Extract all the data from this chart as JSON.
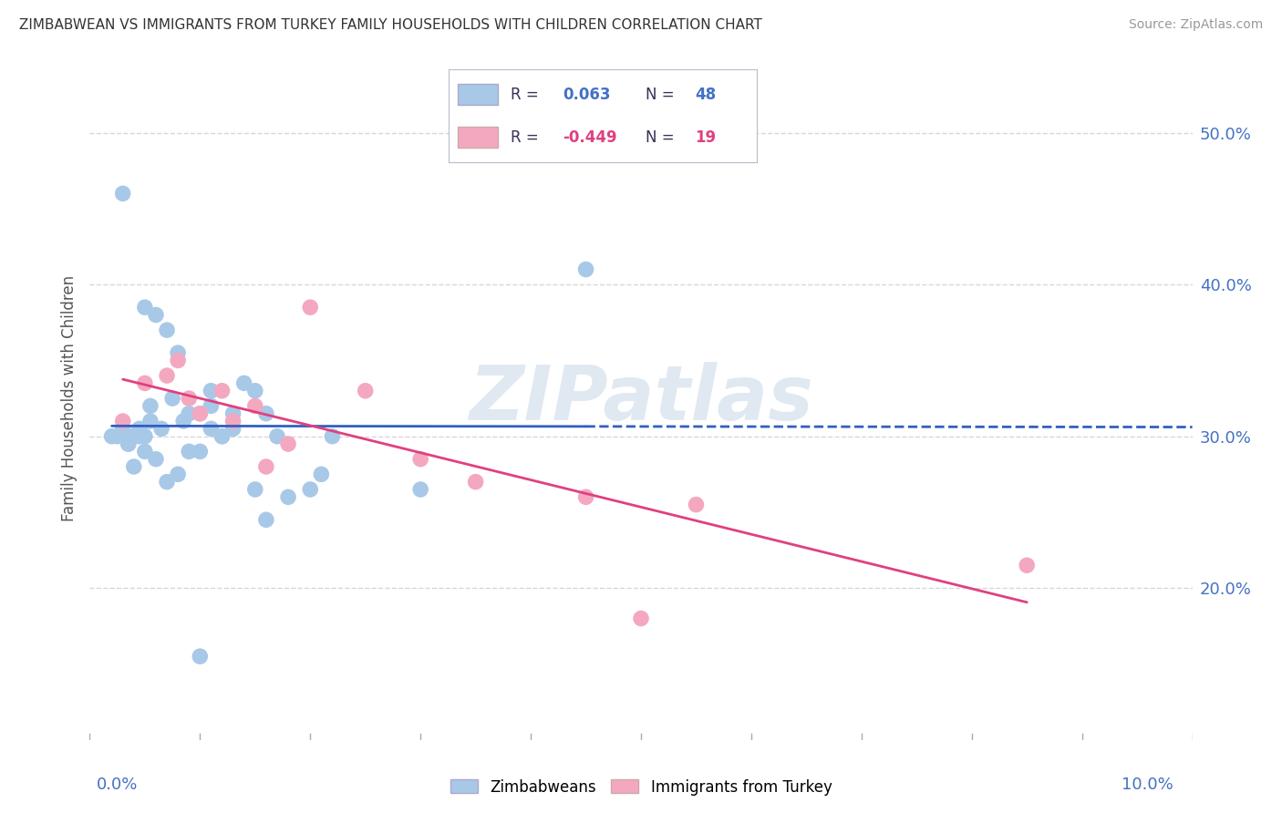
{
  "title": "ZIMBABWEAN VS IMMIGRANTS FROM TURKEY FAMILY HOUSEHOLDS WITH CHILDREN CORRELATION CHART",
  "source": "Source: ZipAtlas.com",
  "ylabel": "Family Households with Children",
  "xmin": 0.0,
  "xmax": 10.0,
  "ymin": 10.0,
  "ymax": 55.0,
  "yticks": [
    20.0,
    30.0,
    40.0,
    50.0
  ],
  "blue_color": "#a8c8e8",
  "pink_color": "#f4a8c0",
  "blue_line_color": "#3060c0",
  "pink_line_color": "#e04080",
  "blue_x": [
    0.2,
    0.3,
    0.35,
    0.4,
    0.45,
    0.5,
    0.5,
    0.55,
    0.6,
    0.65,
    0.7,
    0.75,
    0.8,
    0.85,
    0.9,
    0.9,
    1.0,
    1.0,
    1.1,
    1.1,
    1.2,
    1.3,
    1.4,
    1.5,
    1.6,
    1.7,
    1.8,
    2.0,
    2.1,
    2.2,
    0.3,
    0.4,
    0.5,
    0.6,
    0.7,
    0.8,
    1.0,
    1.1,
    1.2,
    1.3,
    1.5,
    1.6,
    3.0,
    0.25,
    0.35,
    0.45,
    0.55,
    4.5
  ],
  "blue_y": [
    30.0,
    30.5,
    29.5,
    30.0,
    30.5,
    38.5,
    30.0,
    32.0,
    38.0,
    30.5,
    37.0,
    32.5,
    35.5,
    31.0,
    31.5,
    29.0,
    31.5,
    29.0,
    32.0,
    33.0,
    30.0,
    31.5,
    33.5,
    33.0,
    31.5,
    30.0,
    26.0,
    26.5,
    27.5,
    30.0,
    46.0,
    28.0,
    29.0,
    28.5,
    27.0,
    27.5,
    15.5,
    30.5,
    30.0,
    30.5,
    26.5,
    24.5,
    26.5,
    30.0,
    29.5,
    30.0,
    31.0,
    41.0
  ],
  "pink_x": [
    0.3,
    0.5,
    0.7,
    0.8,
    0.9,
    1.0,
    1.2,
    1.3,
    1.5,
    1.6,
    1.8,
    2.0,
    2.5,
    3.0,
    3.5,
    4.5,
    5.0,
    5.5,
    8.5
  ],
  "pink_y": [
    31.0,
    33.5,
    34.0,
    35.0,
    32.5,
    31.5,
    33.0,
    31.0,
    32.0,
    28.0,
    29.5,
    38.5,
    33.0,
    28.5,
    27.0,
    26.0,
    18.0,
    25.5,
    21.5
  ],
  "watermark_text": "ZIPatlas",
  "background_color": "#ffffff",
  "grid_color": "#d8d8d8"
}
